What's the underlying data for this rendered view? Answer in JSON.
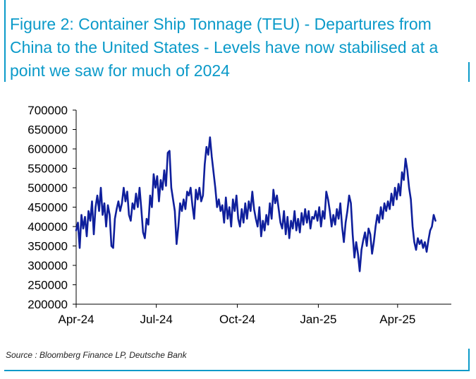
{
  "title": "Figure 2: Container Ship Tonnage (TEU) - Departures from China to the United States - Levels have now stabilised at a point we saw for much of 2024",
  "source": "Source : Bloomberg Finance LP, Deutsche Bank",
  "colors": {
    "accent": "#0b9ac9",
    "series": "#0f1f9c",
    "axis": "#000000"
  },
  "chart_data": {
    "type": "line",
    "title": "",
    "xlabel": "",
    "ylabel": "",
    "ylim": [
      200000,
      700000
    ],
    "y_ticks": [
      200000,
      250000,
      300000,
      350000,
      400000,
      450000,
      500000,
      550000,
      600000,
      650000,
      700000
    ],
    "y_tick_labels": [
      "200000",
      "250000",
      "300000",
      "350000",
      "400000",
      "450000",
      "500000",
      "550000",
      "600000",
      "650000",
      "700000"
    ],
    "xlim": [
      "2024-04-01",
      "2025-06-01"
    ],
    "x_ticks": [
      "2024-04-01",
      "2024-07-01",
      "2024-10-01",
      "2025-01-01",
      "2025-04-01"
    ],
    "x_tick_labels": [
      "Apr-24",
      "Jul-24",
      "Oct-24",
      "Jan-25",
      "Apr-25"
    ],
    "grid": false,
    "legend": "none",
    "series": [
      {
        "points": [
          [
            "2024-04-01",
            390000
          ],
          [
            "2024-04-03",
            410000
          ],
          [
            "2024-04-05",
            345000
          ],
          [
            "2024-04-07",
            430000
          ],
          [
            "2024-04-09",
            395000
          ],
          [
            "2024-04-11",
            425000
          ],
          [
            "2024-04-13",
            375000
          ],
          [
            "2024-04-15",
            440000
          ],
          [
            "2024-04-17",
            415000
          ],
          [
            "2024-04-19",
            465000
          ],
          [
            "2024-04-21",
            380000
          ],
          [
            "2024-04-23",
            450000
          ],
          [
            "2024-04-25",
            480000
          ],
          [
            "2024-04-27",
            440000
          ],
          [
            "2024-04-29",
            500000
          ],
          [
            "2024-05-01",
            430000
          ],
          [
            "2024-05-03",
            460000
          ],
          [
            "2024-05-05",
            400000
          ],
          [
            "2024-05-07",
            455000
          ],
          [
            "2024-05-09",
            430000
          ],
          [
            "2024-05-11",
            350000
          ],
          [
            "2024-05-13",
            345000
          ],
          [
            "2024-05-15",
            420000
          ],
          [
            "2024-05-17",
            445000
          ],
          [
            "2024-05-19",
            465000
          ],
          [
            "2024-05-21",
            440000
          ],
          [
            "2024-05-23",
            460000
          ],
          [
            "2024-05-25",
            500000
          ],
          [
            "2024-05-27",
            465000
          ],
          [
            "2024-05-29",
            490000
          ],
          [
            "2024-05-31",
            430000
          ],
          [
            "2024-06-02",
            415000
          ],
          [
            "2024-06-04",
            460000
          ],
          [
            "2024-06-06",
            445000
          ],
          [
            "2024-06-08",
            485000
          ],
          [
            "2024-06-10",
            450000
          ],
          [
            "2024-06-12",
            500000
          ],
          [
            "2024-06-14",
            445000
          ],
          [
            "2024-06-16",
            385000
          ],
          [
            "2024-06-18",
            370000
          ],
          [
            "2024-06-20",
            420000
          ],
          [
            "2024-06-22",
            405000
          ],
          [
            "2024-06-24",
            480000
          ],
          [
            "2024-06-26",
            450000
          ],
          [
            "2024-06-28",
            535000
          ],
          [
            "2024-06-30",
            500000
          ],
          [
            "2024-07-02",
            530000
          ],
          [
            "2024-07-04",
            465000
          ],
          [
            "2024-07-06",
            520000
          ],
          [
            "2024-07-08",
            495000
          ],
          [
            "2024-07-10",
            545000
          ],
          [
            "2024-07-12",
            505000
          ],
          [
            "2024-07-14",
            590000
          ],
          [
            "2024-07-16",
            595000
          ],
          [
            "2024-07-18",
            500000
          ],
          [
            "2024-07-20",
            470000
          ],
          [
            "2024-07-22",
            440000
          ],
          [
            "2024-07-24",
            355000
          ],
          [
            "2024-07-26",
            400000
          ],
          [
            "2024-07-28",
            460000
          ],
          [
            "2024-07-30",
            440000
          ],
          [
            "2024-08-01",
            470000
          ],
          [
            "2024-08-03",
            445000
          ],
          [
            "2024-08-05",
            490000
          ],
          [
            "2024-08-07",
            480000
          ],
          [
            "2024-08-09",
            500000
          ],
          [
            "2024-08-11",
            455000
          ],
          [
            "2024-08-13",
            420000
          ],
          [
            "2024-08-15",
            495000
          ],
          [
            "2024-08-17",
            470000
          ],
          [
            "2024-08-19",
            500000
          ],
          [
            "2024-08-21",
            465000
          ],
          [
            "2024-08-23",
            480000
          ],
          [
            "2024-08-25",
            560000
          ],
          [
            "2024-08-27",
            605000
          ],
          [
            "2024-08-29",
            585000
          ],
          [
            "2024-08-31",
            630000
          ],
          [
            "2024-09-02",
            580000
          ],
          [
            "2024-09-04",
            540000
          ],
          [
            "2024-09-06",
            500000
          ],
          [
            "2024-09-08",
            450000
          ],
          [
            "2024-09-10",
            470000
          ],
          [
            "2024-09-12",
            440000
          ],
          [
            "2024-09-14",
            455000
          ],
          [
            "2024-09-16",
            410000
          ],
          [
            "2024-09-18",
            475000
          ],
          [
            "2024-09-20",
            420000
          ],
          [
            "2024-09-22",
            450000
          ],
          [
            "2024-09-24",
            400000
          ],
          [
            "2024-09-26",
            470000
          ],
          [
            "2024-09-28",
            440000
          ],
          [
            "2024-09-30",
            480000
          ],
          [
            "2024-10-02",
            420000
          ],
          [
            "2024-10-04",
            400000
          ],
          [
            "2024-10-06",
            445000
          ],
          [
            "2024-10-08",
            410000
          ],
          [
            "2024-10-10",
            460000
          ],
          [
            "2024-10-12",
            420000
          ],
          [
            "2024-10-14",
            465000
          ],
          [
            "2024-10-16",
            440000
          ],
          [
            "2024-10-18",
            490000
          ],
          [
            "2024-10-20",
            445000
          ],
          [
            "2024-10-22",
            420000
          ],
          [
            "2024-10-24",
            400000
          ],
          [
            "2024-10-26",
            450000
          ],
          [
            "2024-10-28",
            375000
          ],
          [
            "2024-10-30",
            415000
          ],
          [
            "2024-11-01",
            390000
          ],
          [
            "2024-11-03",
            430000
          ],
          [
            "2024-11-05",
            405000
          ],
          [
            "2024-11-07",
            460000
          ],
          [
            "2024-11-09",
            420000
          ],
          [
            "2024-11-11",
            495000
          ],
          [
            "2024-11-13",
            460000
          ],
          [
            "2024-11-15",
            480000
          ],
          [
            "2024-11-17",
            445000
          ],
          [
            "2024-11-19",
            410000
          ],
          [
            "2024-11-21",
            395000
          ],
          [
            "2024-11-23",
            440000
          ],
          [
            "2024-11-25",
            380000
          ],
          [
            "2024-11-27",
            425000
          ],
          [
            "2024-11-29",
            370000
          ],
          [
            "2024-12-01",
            415000
          ],
          [
            "2024-12-03",
            395000
          ],
          [
            "2024-12-05",
            440000
          ],
          [
            "2024-12-07",
            390000
          ],
          [
            "2024-12-09",
            420000
          ],
          [
            "2024-12-11",
            385000
          ],
          [
            "2024-12-13",
            435000
          ],
          [
            "2024-12-15",
            405000
          ],
          [
            "2024-12-17",
            445000
          ],
          [
            "2024-12-19",
            410000
          ],
          [
            "2024-12-21",
            440000
          ],
          [
            "2024-12-23",
            395000
          ],
          [
            "2024-12-25",
            425000
          ],
          [
            "2024-12-27",
            420000
          ],
          [
            "2024-12-29",
            440000
          ],
          [
            "2024-12-31",
            415000
          ],
          [
            "2025-01-02",
            450000
          ],
          [
            "2025-01-04",
            400000
          ],
          [
            "2025-01-06",
            440000
          ],
          [
            "2025-01-08",
            420000
          ],
          [
            "2025-01-10",
            490000
          ],
          [
            "2025-01-12",
            470000
          ],
          [
            "2025-01-14",
            440000
          ],
          [
            "2025-01-16",
            400000
          ],
          [
            "2025-01-18",
            430000
          ],
          [
            "2025-01-20",
            405000
          ],
          [
            "2025-01-22",
            445000
          ],
          [
            "2025-01-24",
            420000
          ],
          [
            "2025-01-26",
            460000
          ],
          [
            "2025-01-28",
            400000
          ],
          [
            "2025-01-30",
            360000
          ],
          [
            "2025-02-01",
            410000
          ],
          [
            "2025-02-03",
            440000
          ],
          [
            "2025-02-05",
            480000
          ],
          [
            "2025-02-07",
            460000
          ],
          [
            "2025-02-09",
            380000
          ],
          [
            "2025-02-11",
            320000
          ],
          [
            "2025-02-13",
            360000
          ],
          [
            "2025-02-15",
            330000
          ],
          [
            "2025-02-17",
            285000
          ],
          [
            "2025-02-19",
            340000
          ],
          [
            "2025-02-21",
            365000
          ],
          [
            "2025-02-23",
            385000
          ],
          [
            "2025-02-25",
            350000
          ],
          [
            "2025-02-27",
            395000
          ],
          [
            "2025-03-01",
            380000
          ],
          [
            "2025-03-03",
            330000
          ],
          [
            "2025-03-05",
            360000
          ],
          [
            "2025-03-07",
            400000
          ],
          [
            "2025-03-09",
            430000
          ],
          [
            "2025-03-11",
            410000
          ],
          [
            "2025-03-13",
            450000
          ],
          [
            "2025-03-15",
            420000
          ],
          [
            "2025-03-17",
            460000
          ],
          [
            "2025-03-19",
            440000
          ],
          [
            "2025-03-21",
            465000
          ],
          [
            "2025-03-23",
            445000
          ],
          [
            "2025-03-25",
            485000
          ],
          [
            "2025-03-27",
            455000
          ],
          [
            "2025-03-29",
            500000
          ],
          [
            "2025-03-31",
            470000
          ],
          [
            "2025-04-02",
            510000
          ],
          [
            "2025-04-04",
            480000
          ],
          [
            "2025-04-06",
            540000
          ],
          [
            "2025-04-08",
            520000
          ],
          [
            "2025-04-10",
            575000
          ],
          [
            "2025-04-12",
            545000
          ],
          [
            "2025-04-14",
            500000
          ],
          [
            "2025-04-16",
            470000
          ],
          [
            "2025-04-18",
            400000
          ],
          [
            "2025-04-20",
            360000
          ],
          [
            "2025-04-22",
            340000
          ],
          [
            "2025-04-24",
            370000
          ],
          [
            "2025-04-26",
            355000
          ],
          [
            "2025-04-28",
            365000
          ],
          [
            "2025-04-30",
            345000
          ],
          [
            "2025-05-02",
            360000
          ],
          [
            "2025-05-04",
            335000
          ],
          [
            "2025-05-06",
            365000
          ],
          [
            "2025-05-08",
            390000
          ],
          [
            "2025-05-10",
            400000
          ],
          [
            "2025-05-12",
            430000
          ],
          [
            "2025-05-14",
            415000
          ]
        ]
      }
    ]
  }
}
